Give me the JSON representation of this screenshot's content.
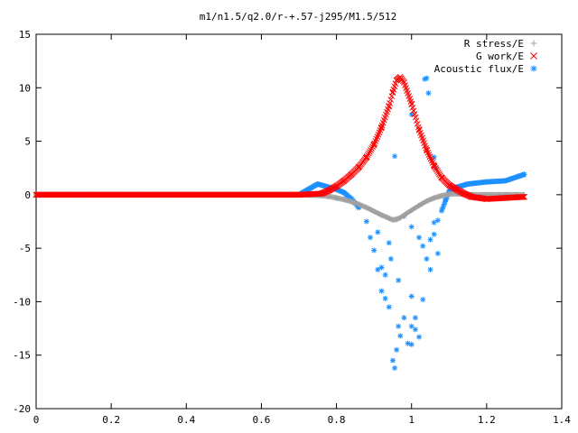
{
  "chart_data": {
    "type": "scatter",
    "title": "m1/n1.5/q2.0/r-+.57-j295/M1.5/512",
    "xlabel": "",
    "ylabel": "",
    "xlim": [
      0,
      1.4
    ],
    "ylim": [
      -20,
      15
    ],
    "x_ticks": [
      "0",
      "0.2",
      "0.4",
      "0.6",
      "0.8",
      "1",
      "1.2",
      "1.4"
    ],
    "y_ticks": [
      "15",
      "10",
      "5",
      "0",
      "-5",
      "-10",
      "-15",
      "-20"
    ],
    "x_tick_values": [
      0,
      0.2,
      0.4,
      0.6,
      0.8,
      1.0,
      1.2,
      1.4
    ],
    "y_tick_values": [
      15,
      10,
      5,
      0,
      -5,
      -10,
      -15,
      -20
    ],
    "grid": false,
    "legend_position": "top-right",
    "series": [
      {
        "name": "R stress/E",
        "marker": "+",
        "color": "#a0a0a0",
        "x": [
          0.0,
          0.1,
          0.2,
          0.3,
          0.4,
          0.5,
          0.6,
          0.7,
          0.75,
          0.78,
          0.8,
          0.82,
          0.84,
          0.86,
          0.88,
          0.9,
          0.92,
          0.94,
          0.95,
          0.96,
          0.97,
          0.98,
          1.0,
          1.02,
          1.04,
          1.06,
          1.08,
          1.1,
          1.12,
          1.14,
          1.16,
          1.2,
          1.25,
          1.3
        ],
        "y": [
          0,
          0,
          0,
          0,
          0,
          0,
          0,
          0,
          -0.05,
          -0.15,
          -0.3,
          -0.45,
          -0.65,
          -0.9,
          -1.2,
          -1.55,
          -1.9,
          -2.2,
          -2.35,
          -2.3,
          -2.15,
          -1.9,
          -1.45,
          -1.0,
          -0.6,
          -0.3,
          -0.1,
          0.05,
          0.1,
          0.05,
          0.0,
          0.0,
          0.0,
          0.0
        ]
      },
      {
        "name": "G work/E",
        "marker": "x",
        "color": "#ff0000",
        "x": [
          0.0,
          0.2,
          0.4,
          0.6,
          0.7,
          0.76,
          0.78,
          0.8,
          0.82,
          0.84,
          0.86,
          0.88,
          0.9,
          0.92,
          0.94,
          0.95,
          0.96,
          0.97,
          0.98,
          1.0,
          1.02,
          1.04,
          1.06,
          1.08,
          1.1,
          1.12,
          1.14,
          1.16,
          1.2,
          1.25,
          1.3
        ],
        "y": [
          0,
          0,
          0,
          0,
          0,
          0.1,
          0.4,
          0.8,
          1.3,
          1.9,
          2.6,
          3.5,
          4.7,
          6.3,
          8.3,
          9.6,
          10.7,
          11.0,
          10.5,
          8.5,
          6.1,
          4.2,
          2.7,
          1.6,
          0.9,
          0.5,
          0.1,
          -0.2,
          -0.4,
          -0.3,
          -0.2
        ]
      },
      {
        "name": "Acoustic flux/E",
        "marker": "*",
        "color": "#1e90ff",
        "x": [
          0.0,
          0.1,
          0.2,
          0.3,
          0.4,
          0.5,
          0.6,
          0.7,
          0.75,
          0.78,
          0.8,
          0.82,
          0.84,
          0.86,
          0.88,
          0.89,
          0.9,
          0.91,
          0.92,
          0.93,
          0.94,
          0.95,
          0.955,
          0.96,
          0.965,
          0.97,
          0.98,
          0.99,
          1.0,
          1.01,
          1.02,
          1.03,
          1.04,
          1.05,
          1.06,
          1.07,
          1.08,
          1.1,
          1.12,
          1.15,
          1.2,
          1.25,
          1.3
        ],
        "y": [
          0,
          0,
          0,
          0,
          0,
          0,
          0,
          0,
          1.0,
          0.7,
          0.5,
          0.2,
          -0.4,
          -1.2,
          -2.5,
          -4.0,
          -5.2,
          -7.0,
          -9.0,
          -7.5,
          -10.5,
          -15.5,
          -16.2,
          -14.5,
          -12.3,
          -13.2,
          -11.5,
          -13.9,
          -12.3,
          -11.5,
          -13.3,
          -9.8,
          -6.0,
          -4.2,
          -3.7,
          -2.4,
          -1.5,
          0.3,
          0.7,
          1.0,
          1.2,
          1.3,
          1.9
        ]
      }
    ],
    "extra_points": {
      "Acoustic flux/E": {
        "x": [
          0.94,
          0.945,
          1.0,
          1.035,
          1.04,
          1.045,
          1.06,
          1.065,
          1.02,
          1.05,
          1.07,
          1.09,
          1.0,
          0.98,
          0.955,
          0.965,
          1.0,
          1.03,
          1.06,
          0.92,
          0.91,
          0.93,
          1.0,
          1.01
        ],
        "y": [
          -4.5,
          -6.0,
          7.5,
          10.8,
          10.9,
          9.5,
          3.5,
          2.5,
          -4.0,
          -7.0,
          -5.5,
          -0.5,
          -3.0,
          -2.0,
          3.6,
          -8.0,
          -9.5,
          -4.8,
          -2.6,
          -6.8,
          -3.5,
          -9.7,
          -14.0,
          -12.6
        ]
      }
    }
  }
}
